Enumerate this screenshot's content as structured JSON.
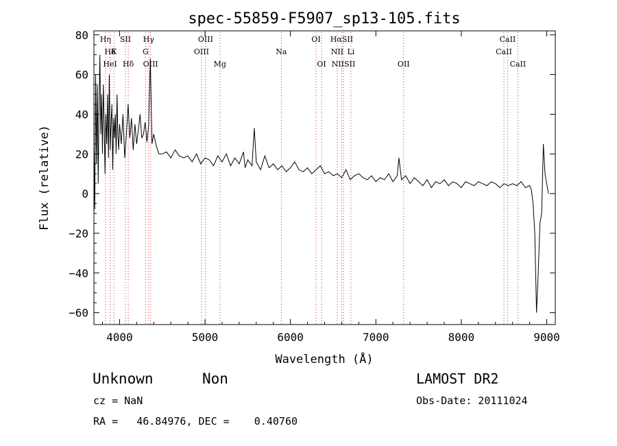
{
  "chart_data": {
    "type": "line",
    "title": "spec-55859-F5907_sp13-105.fits",
    "xlabel": "Wavelength (Å)",
    "ylabel": "Flux (relative)",
    "xlim": [
      3700,
      9100
    ],
    "ylim": [
      -66,
      82
    ],
    "xticks": [
      4000,
      5000,
      6000,
      7000,
      8000,
      9000
    ],
    "yticks": [
      -60,
      -40,
      -20,
      0,
      20,
      40,
      60,
      80
    ],
    "grid": false,
    "line_color": "#000000",
    "marker_color": "#cc3333",
    "series": [
      {
        "x": [
          3700,
          3710,
          3720,
          3730,
          3740,
          3750,
          3760,
          3770,
          3780,
          3790,
          3800,
          3810,
          3820,
          3830,
          3840,
          3850,
          3860,
          3870,
          3880,
          3890,
          3900,
          3910,
          3920,
          3930,
          3940,
          3950,
          3960,
          3970,
          3980,
          3990,
          4000,
          4020,
          4040,
          4060,
          4080,
          4100,
          4120,
          4140,
          4160,
          4180,
          4200,
          4220,
          4240,
          4260,
          4280,
          4300,
          4320,
          4340,
          4360,
          4380,
          4400,
          4430,
          4460,
          4500,
          4550,
          4600,
          4650,
          4700,
          4750,
          4800,
          4850,
          4900,
          4950,
          5000,
          5050,
          5100,
          5150,
          5200,
          5250,
          5300,
          5350,
          5400,
          5450,
          5470,
          5500,
          5550,
          5577,
          5600,
          5650,
          5700,
          5750,
          5800,
          5850,
          5900,
          5950,
          6000,
          6050,
          6100,
          6150,
          6200,
          6250,
          6300,
          6350,
          6400,
          6450,
          6500,
          6550,
          6600,
          6650,
          6700,
          6750,
          6800,
          6850,
          6900,
          6950,
          7000,
          7050,
          7100,
          7150,
          7200,
          7250,
          7270,
          7300,
          7350,
          7400,
          7450,
          7500,
          7550,
          7600,
          7650,
          7700,
          7750,
          7800,
          7850,
          7900,
          7950,
          8000,
          8050,
          8100,
          8150,
          8200,
          8250,
          8300,
          8350,
          8400,
          8450,
          8500,
          8550,
          8600,
          8650,
          8700,
          8750,
          8800,
          8820,
          8840,
          8860,
          8880,
          8900,
          8920,
          8940,
          8960,
          8980,
          9000,
          9020
        ],
        "y": [
          25,
          -8,
          60,
          15,
          55,
          5,
          45,
          70,
          30,
          50,
          20,
          55,
          35,
          10,
          40,
          25,
          50,
          18,
          60,
          22,
          35,
          45,
          12,
          38,
          28,
          40,
          20,
          50,
          30,
          22,
          35,
          25,
          40,
          18,
          30,
          45,
          28,
          38,
          22,
          35,
          25,
          32,
          40,
          28,
          30,
          36,
          26,
          34,
          68,
          25,
          30,
          24,
          20,
          20,
          21,
          18,
          22,
          19,
          18,
          19,
          16,
          20,
          15,
          18,
          17,
          14,
          19,
          16,
          20,
          14,
          18,
          15,
          21,
          13,
          17,
          14,
          33,
          16,
          12,
          19,
          13,
          15,
          12,
          14,
          11,
          13,
          16,
          12,
          11,
          13,
          10,
          12,
          14,
          10,
          11,
          9,
          10,
          8,
          12,
          7,
          9,
          10,
          8,
          7,
          9,
          6,
          8,
          7,
          10,
          6,
          9,
          18,
          7,
          9,
          5,
          8,
          6,
          4,
          7,
          3,
          6,
          5,
          7,
          4,
          6,
          5,
          3,
          6,
          5,
          4,
          6,
          5,
          4,
          6,
          5,
          3,
          5,
          4,
          5,
          4,
          6,
          3,
          4,
          2,
          -5,
          -20,
          -60,
          -40,
          -15,
          -10,
          25,
          10,
          5,
          0
        ]
      }
    ],
    "line_markers": [
      {
        "label": "Hη",
        "x": 3835,
        "row": 0
      },
      {
        "label": "Hδ",
        "x": 3889,
        "row": 1
      },
      {
        "label": "K",
        "x": 3934,
        "row": 1
      },
      {
        "label": "HeI",
        "x": 3889,
        "row": 2
      },
      {
        "label": "SII",
        "x": 4069,
        "row": 0
      },
      {
        "label": "Hδ",
        "x": 4102,
        "row": 2
      },
      {
        "label": "Hγ",
        "x": 4340,
        "row": 0
      },
      {
        "label": "G",
        "x": 4305,
        "row": 1
      },
      {
        "label": "OIII",
        "x": 4363,
        "row": 2
      },
      {
        "label": "OIII",
        "x": 5007,
        "row": 0
      },
      {
        "label": "OIII",
        "x": 4959,
        "row": 1
      },
      {
        "label": "Mg",
        "x": 5175,
        "row": 2
      },
      {
        "label": "Na",
        "x": 5893,
        "row": 1
      },
      {
        "label": "OI",
        "x": 6300,
        "row": 0
      },
      {
        "label": "OI",
        "x": 6364,
        "row": 2
      },
      {
        "label": "HαSII",
        "x": 6600,
        "row": 0
      },
      {
        "label": "NII",
        "x": 6548,
        "row": 1
      },
      {
        "label": "Li",
        "x": 6708,
        "row": 1
      },
      {
        "label": "NIISII",
        "x": 6620,
        "row": 2
      },
      {
        "label": "OII",
        "x": 7325,
        "row": 2
      },
      {
        "label": "CaII",
        "x": 8542,
        "row": 0
      },
      {
        "label": "CaII",
        "x": 8498,
        "row": 1
      },
      {
        "label": "CaII",
        "x": 8662,
        "row": 2
      }
    ]
  },
  "footer": {
    "class_label": "Unknown",
    "subclass_label": "Non",
    "survey": "LAMOST DR2",
    "cz": "cz = NaN",
    "obs_date": "Obs-Date: 20111024",
    "coords": "RA =   46.84976, DEC =    0.40760"
  }
}
